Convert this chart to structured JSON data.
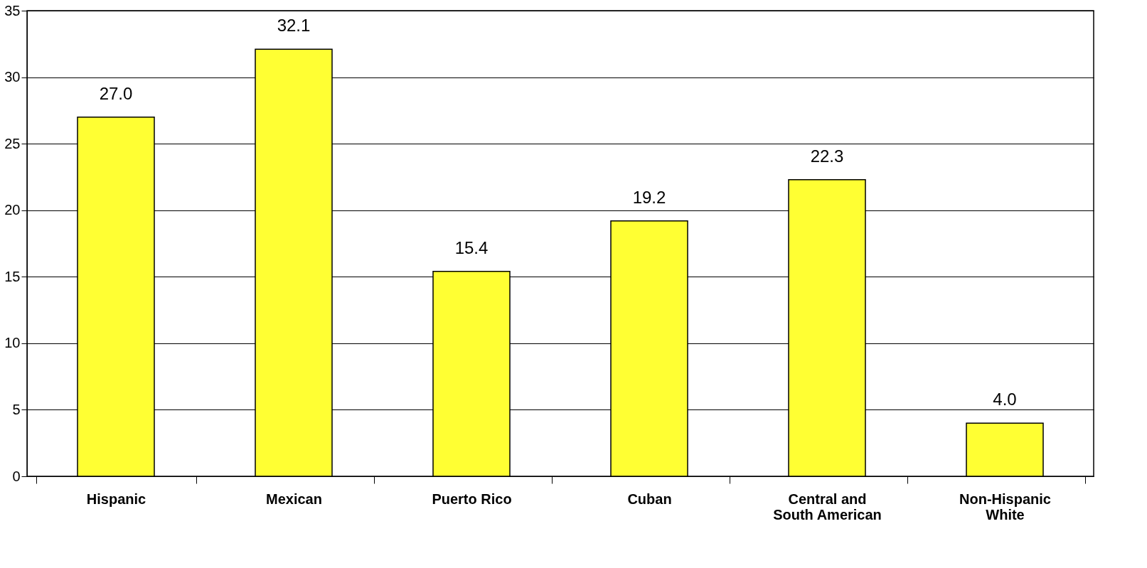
{
  "chart_data": {
    "type": "bar",
    "categories": [
      "Hispanic",
      "Mexican",
      "Puerto Rico",
      "Cuban",
      "Central and South American",
      "Non-Hispanic White"
    ],
    "values": [
      27.0,
      32.1,
      15.4,
      19.2,
      22.3,
      4.0
    ],
    "color": "#ffff33",
    "ylim": [
      0,
      35
    ],
    "yticks": [
      0,
      5,
      10,
      15,
      20,
      25,
      30,
      35
    ],
    "value_labels": [
      "27.0",
      "32.1",
      "15.4",
      "19.2",
      "22.3",
      "4.0"
    ],
    "grid": "y"
  }
}
